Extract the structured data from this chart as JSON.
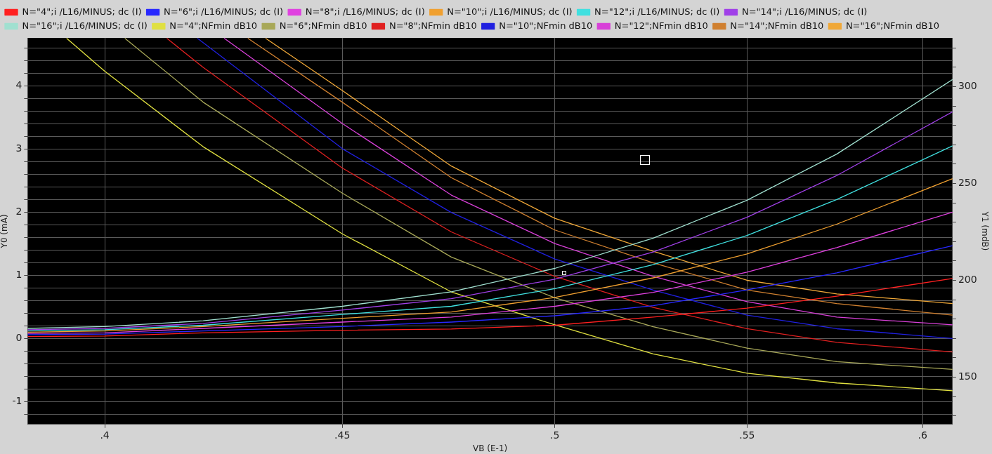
{
  "chart_data": {
    "type": "line",
    "xlabel": "VB (E-1)",
    "ylabel": "Y0 (mA)",
    "y2label": "Y1 (mdB)",
    "log": "x",
    "grid": true,
    "legend": "top left",
    "xlim": [
      0.385,
      0.609
    ],
    "xticks": [
      {
        "value": 0.4,
        "label": ".4"
      },
      {
        "value": 0.45,
        "label": ".45"
      },
      {
        "value": 0.5,
        "label": ".5"
      },
      {
        "value": 0.55,
        "label": ".55"
      },
      {
        "value": 0.6,
        "label": ".6"
      }
    ],
    "ylim": [
      -1.36,
      4.76
    ],
    "yticks": [
      {
        "value": -1.2,
        "label": null
      },
      -1,
      {
        "value": -0.8,
        "label": null
      },
      {
        "value": -0.6,
        "label": null
      },
      {
        "value": -0.4,
        "label": null
      },
      {
        "value": -0.2,
        "label": null
      },
      0,
      {
        "value": 0.2,
        "label": null
      },
      {
        "value": 0.4,
        "label": null
      },
      {
        "value": 0.6,
        "label": null
      },
      {
        "value": 0.8,
        "label": null
      },
      1,
      {
        "value": 1.2,
        "label": null
      },
      {
        "value": 1.4,
        "label": null
      },
      {
        "value": 1.6,
        "label": null
      },
      {
        "value": 1.8,
        "label": null
      },
      2,
      {
        "value": 2.2,
        "label": null
      },
      {
        "value": 2.4,
        "label": null
      },
      {
        "value": 2.6,
        "label": null
      },
      {
        "value": 2.8,
        "label": null
      },
      3,
      {
        "value": 3.2,
        "label": null
      },
      {
        "value": 3.4,
        "label": null
      },
      {
        "value": 3.6,
        "label": null
      },
      {
        "value": 3.8,
        "label": null
      },
      4,
      {
        "value": 4.2,
        "label": null
      },
      {
        "value": 4.4,
        "label": null
      },
      {
        "value": 4.6,
        "label": null
      }
    ],
    "y2lim": [
      125.6,
      325.2
    ],
    "y2ticks": [
      {
        "value": 130,
        "label": null
      },
      {
        "value": 140,
        "label": null
      },
      150,
      {
        "value": 160,
        "label": null
      },
      {
        "value": 170,
        "label": null
      },
      {
        "value": 180,
        "label": null
      },
      {
        "value": 190,
        "label": null
      },
      200,
      {
        "value": 210,
        "label": null
      },
      {
        "value": 220,
        "label": null
      },
      {
        "value": 230,
        "label": null
      },
      {
        "value": 240,
        "label": null
      },
      250,
      {
        "value": 260,
        "label": null
      },
      {
        "value": 270,
        "label": null
      },
      {
        "value": 280,
        "label": null
      },
      {
        "value": 290,
        "label": null
      },
      300,
      {
        "value": 310,
        "label": null
      },
      {
        "value": 320,
        "label": null
      }
    ],
    "x": [
      0.385,
      0.4,
      0.42,
      0.45,
      0.475,
      0.5,
      0.525,
      0.55,
      0.575,
      0.609
    ],
    "series": [
      {
        "name": "N=\"4\";i /L16/MINUS; dc (I)",
        "color": "#ff2020",
        "values": [
          0.03,
          0.04,
          0.09,
          0.13,
          0.15,
          0.21,
          0.34,
          0.48,
          0.67,
          0.95
        ]
      },
      {
        "name": "N=\"6\";i /L16/MINUS; dc (I)",
        "color": "#2828ff",
        "values": [
          0.06,
          0.07,
          0.12,
          0.19,
          0.26,
          0.36,
          0.52,
          0.77,
          1.04,
          1.47
        ]
      },
      {
        "name": "N=\"8\";i /L16/MINUS; dc (I)",
        "color": "#e040e0",
        "values": [
          0.08,
          0.09,
          0.16,
          0.26,
          0.34,
          0.51,
          0.73,
          1.05,
          1.44,
          2.0
        ]
      },
      {
        "name": "N=\"10\";i /L16/MINUS; dc (I)",
        "color": "#f0a030",
        "values": [
          0.1,
          0.12,
          0.19,
          0.32,
          0.42,
          0.65,
          0.96,
          1.34,
          1.81,
          2.53
        ]
      },
      {
        "name": "N=\"12\";i /L16/MINUS; dc (I)",
        "color": "#40e0e0",
        "values": [
          0.12,
          0.14,
          0.21,
          0.38,
          0.51,
          0.79,
          1.17,
          1.63,
          2.2,
          3.05
        ]
      },
      {
        "name": "N=\"14\";i /L16/MINUS; dc (I)",
        "color": "#a040e8",
        "values": [
          0.14,
          0.16,
          0.24,
          0.45,
          0.63,
          0.94,
          1.37,
          1.92,
          2.58,
          3.59
        ]
      },
      {
        "name": "N=\"16\";i /L16/MINUS; dc (I)",
        "color": "#a0e0d0",
        "values": [
          0.16,
          0.19,
          0.28,
          0.51,
          0.74,
          1.11,
          1.59,
          2.19,
          2.92,
          4.1
        ]
      },
      {
        "name": "N=\"4\";NFmin dB10",
        "color": "#e0e040",
        "axis": "y2",
        "x": [
          0.3925,
          0.4,
          0.42,
          0.45,
          0.475,
          0.5,
          0.525,
          0.55,
          0.575,
          0.609
        ],
        "values": [
          325,
          308,
          269,
          224,
          194,
          177,
          162,
          152,
          147,
          143
        ]
      },
      {
        "name": "N=\"6\";NFmin dB10",
        "color": "#a8a858",
        "axis": "y2",
        "x": [
          0.404,
          0.42,
          0.45,
          0.475,
          0.5,
          0.525,
          0.55,
          0.575,
          0.609
        ],
        "values": [
          325,
          292,
          245,
          212,
          191,
          176,
          165,
          158,
          154
        ]
      },
      {
        "name": "N=\"8\";NFmin dB10",
        "color": "#e02020",
        "axis": "y2",
        "x": [
          0.4125,
          0.42,
          0.45,
          0.475,
          0.5,
          0.525,
          0.55,
          0.575,
          0.609
        ],
        "values": [
          325,
          310,
          258,
          225,
          202,
          186,
          175,
          168,
          163
        ]
      },
      {
        "name": "N=\"10\";NFmin dB10",
        "color": "#2020e0",
        "axis": "y2",
        "x": [
          0.4188,
          0.45,
          0.475,
          0.5,
          0.525,
          0.55,
          0.575,
          0.609
        ],
        "values": [
          325,
          268,
          235,
          211,
          195,
          182,
          175,
          170
        ]
      },
      {
        "name": "N=\"12\";NFmin dB10",
        "color": "#d840d8",
        "axis": "y2",
        "x": [
          0.4244,
          0.45,
          0.475,
          0.5,
          0.525,
          0.55,
          0.575,
          0.609
        ],
        "values": [
          325,
          281,
          244,
          219,
          202,
          189,
          181,
          177
        ]
      },
      {
        "name": "N=\"14\";NFmin dB10",
        "color": "#d08030",
        "axis": "y2",
        "x": [
          0.4294,
          0.45,
          0.475,
          0.5,
          0.525,
          0.55,
          0.575,
          0.609
        ],
        "values": [
          325,
          292,
          253,
          226,
          209,
          195,
          188,
          182
        ]
      },
      {
        "name": "N=\"16\";NFmin dB10",
        "color": "#f0a838",
        "axis": "y2",
        "x": [
          0.4332,
          0.45,
          0.475,
          0.5,
          0.525,
          0.55,
          0.575,
          0.609
        ],
        "values": [
          325,
          298,
          259,
          232,
          215,
          200,
          193,
          188
        ]
      }
    ]
  }
}
